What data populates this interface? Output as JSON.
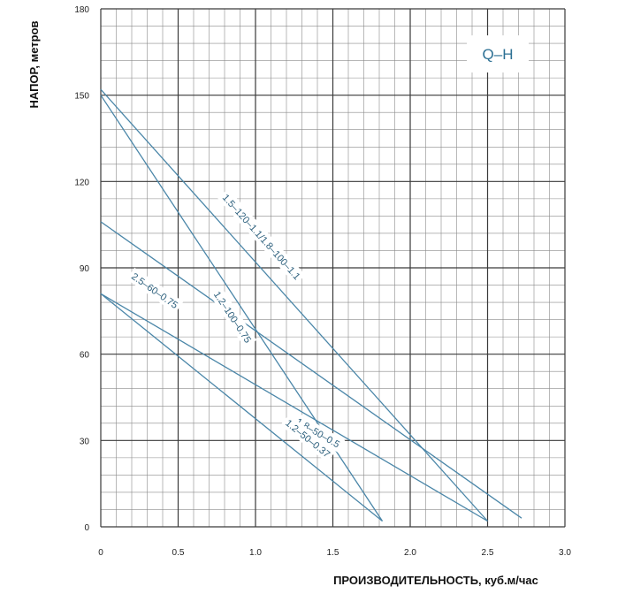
{
  "chart_data": {
    "type": "line",
    "title": "",
    "legend_label": "Q–H",
    "xlabel": "ПРОИЗВОДИТЕЛЬНОСТЬ, куб.м/час",
    "ylabel": "НАПОР, метров",
    "xlim": [
      0,
      3
    ],
    "ylim": [
      0,
      180
    ],
    "x_ticks": [
      "0",
      "0.5",
      "1.0",
      "1.5",
      "2.0",
      "2.5",
      "3.0"
    ],
    "y_ticks": [
      "0",
      "30",
      "60",
      "90",
      "120",
      "150",
      "180"
    ],
    "grid": true,
    "colors": {
      "line": "#4a86a8",
      "grid_major": "#3a3a3a",
      "grid_minor": "#8a8a8a",
      "label": "#2c5f7c",
      "legend": "#2b6f93"
    },
    "series": [
      {
        "name": "1.2–100–0.75",
        "x": [
          0,
          1.82
        ],
        "y": [
          150,
          2
        ]
      },
      {
        "name": "1.5–120–1.1/1.8–100–1.1",
        "x": [
          0,
          2.5
        ],
        "y": [
          152,
          2
        ]
      },
      {
        "name": "2.5–60–0.75",
        "x": [
          0,
          2.72
        ],
        "y": [
          106,
          3
        ]
      },
      {
        "name": "1.8–50–0.5",
        "x": [
          0,
          2.5
        ],
        "y": [
          81,
          2
        ]
      },
      {
        "name": "1.2–50–0.37",
        "x": [
          0,
          1.82
        ],
        "y": [
          81,
          2
        ]
      }
    ]
  }
}
